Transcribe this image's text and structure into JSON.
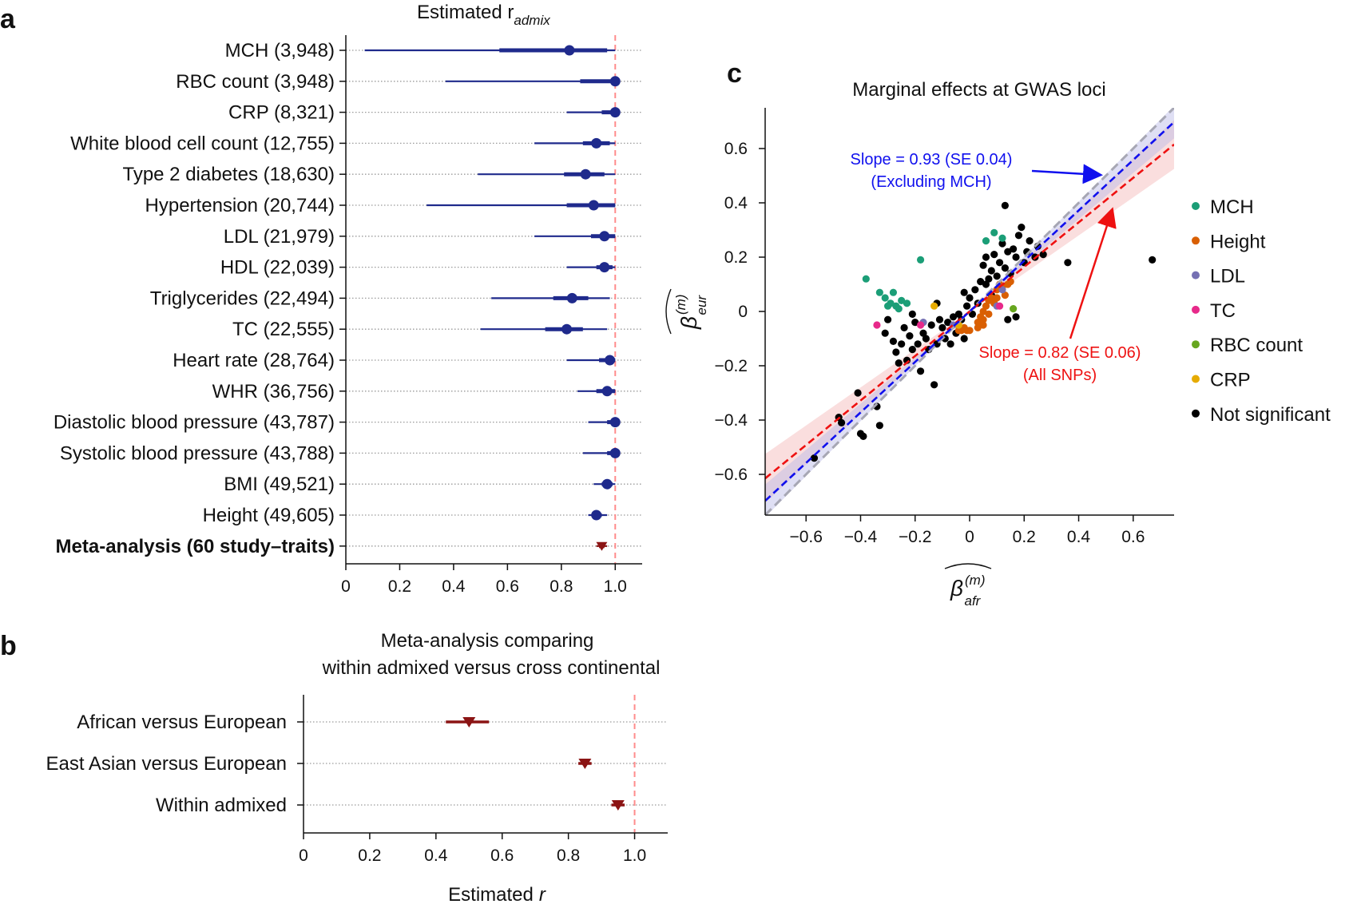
{
  "panel_labels": {
    "a": "a",
    "b": "b",
    "c": "c"
  },
  "colors": {
    "forest_blue": "#1f2a8c",
    "meta_red": "#8b1414",
    "reference_line": "#ff8c8c",
    "grid_dotted": "#9a9a9a",
    "slope_blue": "#1010ee",
    "slope_red": "#ee1111",
    "identity_gray": "#a7a7b4",
    "band_red": "#f4b6b6",
    "band_blue": "#b8b8e6"
  },
  "chart_data": [
    {
      "id": "a",
      "type": "forest",
      "title": "Estimated r",
      "title_subscript": "admix",
      "xlim": [
        0,
        1.1
      ],
      "xticks": [
        0,
        0.2,
        0.4,
        0.6,
        0.8,
        1.0
      ],
      "xtick_labels": [
        "0",
        "0.2",
        "0.4",
        "0.6",
        "0.8",
        "1.0"
      ],
      "reference_x": 1.0,
      "rows": [
        {
          "label": "MCH (3,948)",
          "estimate": 0.83,
          "ci95": [
            0.07,
            1.0
          ],
          "ci50": [
            0.57,
            0.97
          ],
          "bold": false,
          "marker": "circle"
        },
        {
          "label": "RBC count (3,948)",
          "estimate": 1.0,
          "ci95": [
            0.37,
            1.0
          ],
          "ci50": [
            0.87,
            1.0
          ],
          "bold": false,
          "marker": "circle"
        },
        {
          "label": "CRP (8,321)",
          "estimate": 1.0,
          "ci95": [
            0.82,
            1.0
          ],
          "ci50": [
            0.95,
            1.0
          ],
          "bold": false,
          "marker": "circle"
        },
        {
          "label": "White blood cell count (12,755)",
          "estimate": 0.93,
          "ci95": [
            0.7,
            1.0
          ],
          "ci50": [
            0.88,
            0.98
          ],
          "bold": false,
          "marker": "circle"
        },
        {
          "label": "Type 2 diabetes (18,630)",
          "estimate": 0.89,
          "ci95": [
            0.49,
            1.0
          ],
          "ci50": [
            0.81,
            0.96
          ],
          "bold": false,
          "marker": "circle"
        },
        {
          "label": "Hypertension (20,744)",
          "estimate": 0.92,
          "ci95": [
            0.3,
            1.0
          ],
          "ci50": [
            0.82,
            1.0
          ],
          "bold": false,
          "marker": "circle"
        },
        {
          "label": "LDL (21,979)",
          "estimate": 0.96,
          "ci95": [
            0.7,
            1.0
          ],
          "ci50": [
            0.91,
            1.0
          ],
          "bold": false,
          "marker": "circle"
        },
        {
          "label": "HDL (22,039)",
          "estimate": 0.96,
          "ci95": [
            0.82,
            1.0
          ],
          "ci50": [
            0.93,
            0.99
          ],
          "bold": false,
          "marker": "circle"
        },
        {
          "label": "Triglycerides (22,494)",
          "estimate": 0.84,
          "ci95": [
            0.54,
            0.98
          ],
          "ci50": [
            0.77,
            0.9
          ],
          "bold": false,
          "marker": "circle"
        },
        {
          "label": "TC (22,555)",
          "estimate": 0.82,
          "ci95": [
            0.5,
            0.97
          ],
          "ci50": [
            0.74,
            0.88
          ],
          "bold": false,
          "marker": "circle"
        },
        {
          "label": "Heart rate (28,764)",
          "estimate": 0.98,
          "ci95": [
            0.82,
            1.0
          ],
          "ci50": [
            0.94,
            1.0
          ],
          "bold": false,
          "marker": "circle"
        },
        {
          "label": "WHR (36,756)",
          "estimate": 0.97,
          "ci95": [
            0.86,
            1.0
          ],
          "ci50": [
            0.93,
            1.0
          ],
          "bold": false,
          "marker": "circle"
        },
        {
          "label": "Diastolic blood pressure (43,787)",
          "estimate": 1.0,
          "ci95": [
            0.9,
            1.0
          ],
          "ci50": [
            0.97,
            1.0
          ],
          "bold": false,
          "marker": "circle"
        },
        {
          "label": "Systolic blood pressure (43,788)",
          "estimate": 1.0,
          "ci95": [
            0.88,
            1.0
          ],
          "ci50": [
            0.97,
            1.0
          ],
          "bold": false,
          "marker": "circle"
        },
        {
          "label": "BMI (49,521)",
          "estimate": 0.97,
          "ci95": [
            0.92,
            1.0
          ],
          "ci50": [
            0.95,
            0.99
          ],
          "bold": false,
          "marker": "circle"
        },
        {
          "label": "Height (49,605)",
          "estimate": 0.93,
          "ci95": [
            0.9,
            0.97
          ],
          "ci50": [
            0.92,
            0.95
          ],
          "bold": false,
          "marker": "circle"
        },
        {
          "label": "Meta-analysis (60 study–traits)",
          "estimate": 0.95,
          "ci95": [
            0.93,
            0.97
          ],
          "ci50": [
            0.94,
            0.96
          ],
          "bold": true,
          "marker": "triangle"
        }
      ]
    },
    {
      "id": "b",
      "type": "forest",
      "title_lines": [
        "Meta-analysis comparing",
        "within admixed versus cross continental"
      ],
      "xlabel": "Estimated",
      "xlabel_italic": "r",
      "xlim": [
        0,
        1.1
      ],
      "xticks": [
        0,
        0.2,
        0.4,
        0.6,
        0.8,
        1.0
      ],
      "xtick_labels": [
        "0",
        "0.2",
        "0.4",
        "0.6",
        "0.8",
        "1.0"
      ],
      "reference_x": 1.0,
      "rows": [
        {
          "label": "African versus European",
          "estimate": 0.5,
          "ci": [
            0.43,
            0.56
          ],
          "marker": "triangle"
        },
        {
          "label": "East Asian versus European",
          "estimate": 0.85,
          "ci": [
            0.83,
            0.87
          ],
          "marker": "triangle"
        },
        {
          "label": "Within admixed",
          "estimate": 0.95,
          "ci": [
            0.93,
            0.97
          ],
          "marker": "triangle"
        }
      ]
    },
    {
      "id": "c",
      "type": "scatter",
      "title": "Marginal effects at GWAS loci",
      "xlabel": "β",
      "xlabel_sup": "(m)",
      "xlabel_sub": "afr",
      "ylabel": "β",
      "ylabel_sup": "(m)",
      "ylabel_sub": "eur",
      "xlim": [
        -0.75,
        0.75
      ],
      "ylim": [
        -0.75,
        0.75
      ],
      "xticks": [
        -0.6,
        -0.4,
        -0.2,
        0,
        0.2,
        0.4,
        0.6
      ],
      "xtick_labels": [
        "−0.6",
        "−0.4",
        "−0.2",
        "0",
        "0.2",
        "0.4",
        "0.6"
      ],
      "yticks": [
        -0.6,
        -0.4,
        -0.2,
        0,
        0.2,
        0.4,
        0.6
      ],
      "ytick_labels": [
        "−0.6",
        "−0.4",
        "−0.2",
        "0",
        "0.2",
        "0.4",
        "0.6"
      ],
      "fits": [
        {
          "name": "Slope = 0.93 (SE 0.04)",
          "note": "(Excluding MCH)",
          "slope": 0.93,
          "intercept": 0.0,
          "se": 0.04,
          "color": "#1010ee"
        },
        {
          "name": "Slope = 0.82 (SE 0.06)",
          "note": "(All SNPs)",
          "slope": 0.82,
          "intercept": 0.0,
          "se": 0.06,
          "color": "#ee1111"
        }
      ],
      "identity_line": {
        "slope": 1.0,
        "intercept": 0.0,
        "color": "#a7a7b4"
      },
      "legend_position": "right",
      "series": [
        {
          "name": "MCH",
          "color": "#1b9e77",
          "points": [
            [
              -0.38,
              0.12
            ],
            [
              -0.33,
              0.07
            ],
            [
              -0.31,
              0.05
            ],
            [
              -0.3,
              0.02
            ],
            [
              -0.29,
              0.03
            ],
            [
              -0.28,
              0.07
            ],
            [
              -0.27,
              0.02
            ],
            [
              -0.26,
              0.01
            ],
            [
              -0.25,
              0.04
            ],
            [
              -0.23,
              0.03
            ],
            [
              -0.18,
              0.19
            ],
            [
              0.06,
              0.26
            ],
            [
              0.09,
              0.29
            ],
            [
              0.12,
              0.27
            ]
          ]
        },
        {
          "name": "Height",
          "color": "#d95f02",
          "points": [
            [
              -0.04,
              -0.07
            ],
            [
              -0.03,
              -0.07
            ],
            [
              -0.02,
              -0.06
            ],
            [
              -0.01,
              -0.07
            ],
            [
              0.0,
              -0.07
            ],
            [
              0.03,
              -0.04
            ],
            [
              0.04,
              -0.02
            ],
            [
              0.05,
              0.0
            ],
            [
              0.05,
              -0.03
            ],
            [
              0.06,
              0.02
            ],
            [
              0.07,
              -0.01
            ],
            [
              0.07,
              0.04
            ],
            [
              0.08,
              0.05
            ],
            [
              0.09,
              0.03
            ],
            [
              0.1,
              0.05
            ],
            [
              0.1,
              0.08
            ],
            [
              0.11,
              0.1
            ],
            [
              0.12,
              0.09
            ],
            [
              0.13,
              0.06
            ],
            [
              0.14,
              0.1
            ],
            [
              0.15,
              0.11
            ],
            [
              0.03,
              -0.06
            ],
            [
              0.05,
              -0.05
            ]
          ]
        },
        {
          "name": "LDL",
          "color": "#7570b3",
          "points": [
            [
              -0.17,
              -0.04
            ],
            [
              -0.06,
              -0.05
            ],
            [
              0.1,
              0.02
            ],
            [
              0.12,
              0.08
            ]
          ]
        },
        {
          "name": "TC",
          "color": "#e7298a",
          "points": [
            [
              -0.34,
              -0.05
            ],
            [
              -0.18,
              -0.05
            ],
            [
              0.11,
              0.02
            ]
          ]
        },
        {
          "name": "RBC count",
          "color": "#66a61e",
          "points": [
            [
              0.16,
              0.01
            ]
          ]
        },
        {
          "name": "CRP",
          "color": "#e6ab02",
          "points": [
            [
              -0.13,
              0.02
            ],
            [
              -0.04,
              -0.05
            ]
          ]
        },
        {
          "name": "Not significant",
          "color": "#000000",
          "points": [
            [
              -0.57,
              -0.54
            ],
            [
              -0.48,
              -0.39
            ],
            [
              -0.47,
              -0.41
            ],
            [
              -0.41,
              -0.3
            ],
            [
              -0.4,
              -0.45
            ],
            [
              -0.39,
              -0.46
            ],
            [
              -0.34,
              -0.35
            ],
            [
              -0.33,
              -0.42
            ],
            [
              -0.31,
              -0.08
            ],
            [
              -0.3,
              -0.03
            ],
            [
              -0.28,
              -0.11
            ],
            [
              -0.27,
              -0.15
            ],
            [
              -0.26,
              -0.19
            ],
            [
              -0.25,
              -0.12
            ],
            [
              -0.24,
              -0.06
            ],
            [
              -0.23,
              -0.18
            ],
            [
              -0.22,
              -0.09
            ],
            [
              -0.21,
              -0.14
            ],
            [
              -0.2,
              -0.04
            ],
            [
              -0.19,
              -0.12
            ],
            [
              -0.18,
              -0.22
            ],
            [
              -0.17,
              -0.08
            ],
            [
              -0.16,
              -0.1
            ],
            [
              -0.15,
              -0.14
            ],
            [
              -0.14,
              -0.05
            ],
            [
              -0.13,
              -0.27
            ],
            [
              -0.12,
              -0.12
            ],
            [
              -0.11,
              -0.03
            ],
            [
              -0.1,
              -0.06
            ],
            [
              -0.09,
              -0.1
            ],
            [
              -0.08,
              -0.04
            ],
            [
              -0.07,
              -0.12
            ],
            [
              -0.06,
              -0.02
            ],
            [
              -0.05,
              -0.08
            ],
            [
              -0.04,
              -0.01
            ],
            [
              -0.03,
              -0.03
            ],
            [
              -0.02,
              -0.1
            ],
            [
              -0.01,
              0.02
            ],
            [
              0.0,
              0.05
            ],
            [
              0.01,
              -0.01
            ],
            [
              0.02,
              0.08
            ],
            [
              0.03,
              0.03
            ],
            [
              0.04,
              0.11
            ],
            [
              0.05,
              0.17
            ],
            [
              0.06,
              0.1
            ],
            [
              0.06,
              0.2
            ],
            [
              0.07,
              0.12
            ],
            [
              0.08,
              0.15
            ],
            [
              0.09,
              0.21
            ],
            [
              0.1,
              0.13
            ],
            [
              0.11,
              0.18
            ],
            [
              0.12,
              0.25
            ],
            [
              0.13,
              0.16
            ],
            [
              0.13,
              0.39
            ],
            [
              0.14,
              0.22
            ],
            [
              0.15,
              0.14
            ],
            [
              0.16,
              0.23
            ],
            [
              0.17,
              0.2
            ],
            [
              0.18,
              0.28
            ],
            [
              0.19,
              0.31
            ],
            [
              0.2,
              0.18
            ],
            [
              0.21,
              0.22
            ],
            [
              0.22,
              0.26
            ],
            [
              0.24,
              0.2
            ],
            [
              0.25,
              0.24
            ],
            [
              0.27,
              0.21
            ],
            [
              0.36,
              0.18
            ],
            [
              0.67,
              0.19
            ],
            [
              0.17,
              -0.02
            ],
            [
              0.14,
              -0.03
            ],
            [
              -0.02,
              0.07
            ],
            [
              0.08,
              0.06
            ],
            [
              -0.12,
              0.03
            ],
            [
              -0.21,
              -0.01
            ]
          ]
        }
      ]
    }
  ]
}
